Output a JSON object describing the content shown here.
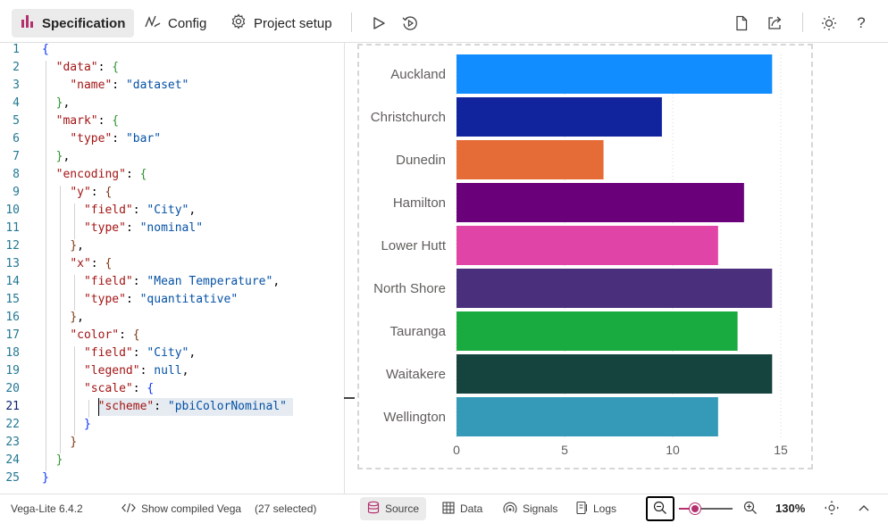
{
  "toolbar": {
    "tabs": [
      {
        "label": "Specification",
        "icon": "bar-chart-icon",
        "active": true
      },
      {
        "label": "Config",
        "icon": "pen-curve-icon",
        "active": false
      },
      {
        "label": "Project setup",
        "icon": "gear-icon",
        "active": false
      }
    ],
    "actions": [
      "play-icon",
      "auto-run-icon",
      "document-icon",
      "share-icon",
      "theme-sun-icon",
      "help-icon"
    ],
    "help_glyph": "?"
  },
  "editor": {
    "current_line": 21,
    "lines": [
      {
        "n": "1"
      },
      {
        "n": "2"
      },
      {
        "n": "3"
      },
      {
        "n": "4"
      },
      {
        "n": "5"
      },
      {
        "n": "6"
      },
      {
        "n": "7"
      },
      {
        "n": "8"
      },
      {
        "n": "9"
      },
      {
        "n": "10"
      },
      {
        "n": "11"
      },
      {
        "n": "12"
      },
      {
        "n": "13"
      },
      {
        "n": "14"
      },
      {
        "n": "15"
      },
      {
        "n": "16"
      },
      {
        "n": "17"
      },
      {
        "n": "18"
      },
      {
        "n": "19"
      },
      {
        "n": "20"
      },
      {
        "n": "21"
      },
      {
        "n": "22"
      },
      {
        "n": "23"
      },
      {
        "n": "24"
      },
      {
        "n": "25"
      }
    ],
    "tokens": {
      "data_key": "\"data\"",
      "name_key": "\"name\"",
      "name_val": "\"dataset\"",
      "mark_key": "\"mark\"",
      "type_key": "\"type\"",
      "bar_val": "\"bar\"",
      "encoding_key": "\"encoding\"",
      "y_key": "\"y\"",
      "field_key": "\"field\"",
      "city_val": "\"City\"",
      "nominal_val": "\"nominal\"",
      "x_key": "\"x\"",
      "meantemp_val": "\"Mean Temperature\"",
      "quant_val": "\"quantitative\"",
      "color_key": "\"color\"",
      "legend_key": "\"legend\"",
      "null_val": "null",
      "scale_key": "\"scale\"",
      "scheme_key": "\"scheme\"",
      "scheme_val": "\"pbiColorNominal\""
    }
  },
  "chart_data": {
    "type": "bar",
    "orientation": "horizontal",
    "categories": [
      "Auckland",
      "Christchurch",
      "Dunedin",
      "Hamilton",
      "Lower Hutt",
      "North Shore",
      "Tauranga",
      "Waitakere",
      "Wellington"
    ],
    "values": [
      14.6,
      9.5,
      6.8,
      13.3,
      12.1,
      14.6,
      13.0,
      14.6,
      12.1
    ],
    "colors": [
      "#118dff",
      "#12239e",
      "#e66c37",
      "#6b007b",
      "#e044a7",
      "#4a2f7d",
      "#1aab40",
      "#15433d",
      "#3599b8"
    ],
    "x_ticks": [
      "0",
      "5",
      "10",
      "15"
    ],
    "xlim": [
      0,
      15
    ],
    "title": "",
    "xlabel": "",
    "ylabel": "",
    "grid": true,
    "legend": "none"
  },
  "status": {
    "version": "Vega-Lite 6.4.2",
    "compiled": "Show compiled Vega",
    "selected": "(27 selected)",
    "tabs": [
      {
        "label": "Source",
        "icon": "database-icon",
        "active": true
      },
      {
        "label": "Data",
        "icon": "table-icon",
        "active": false
      },
      {
        "label": "Signals",
        "icon": "signal-icon",
        "active": false
      },
      {
        "label": "Logs",
        "icon": "logs-icon",
        "active": false
      }
    ],
    "zoom": "130%",
    "zoom_fraction": 0.3
  }
}
